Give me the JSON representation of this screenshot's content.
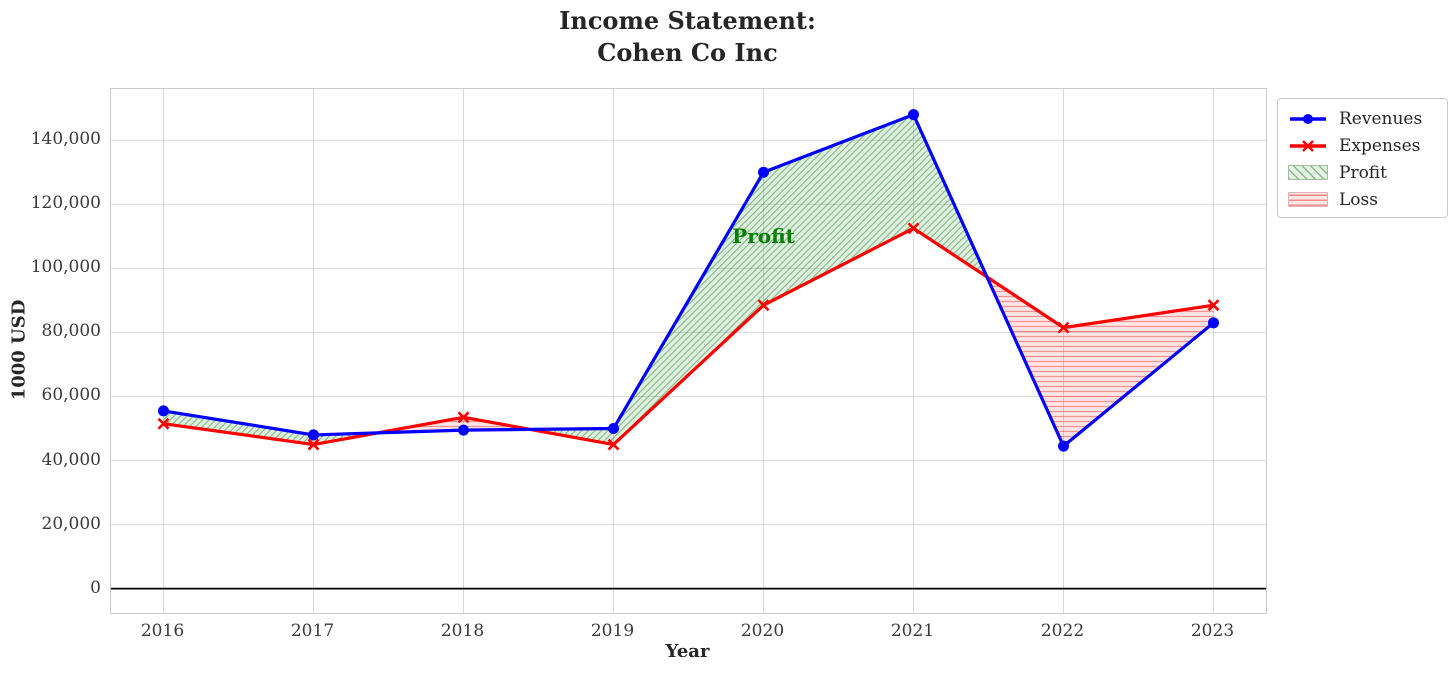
{
  "title": {
    "line1": "Income Statement:",
    "line2": "Cohen Co Inc"
  },
  "chart_data": {
    "type": "line",
    "x": [
      2016,
      2017,
      2018,
      2019,
      2020,
      2021,
      2022,
      2023
    ],
    "series": [
      {
        "name": "Revenues",
        "color": "#0000ff",
        "marker": "circle",
        "values": [
          55500,
          48000,
          49500,
          50000,
          130000,
          148000,
          44500,
          83000
        ]
      },
      {
        "name": "Expenses",
        "color": "#ff0000",
        "marker": "x",
        "values": [
          51500,
          45000,
          53500,
          45000,
          88500,
          112500,
          81500,
          88500
        ]
      }
    ],
    "fills": [
      {
        "name": "Profit",
        "base_color": "rgba(0,128,0,0.12)",
        "hatch": "diagonal",
        "hatch_color": "rgba(50,140,50,0.5)"
      },
      {
        "name": "Loss",
        "base_color": "rgba(255,0,0,0.10)",
        "hatch": "horizontal",
        "hatch_color": "rgba(235,90,90,0.6)"
      }
    ],
    "xlabel": "Year",
    "ylabel": "1000 USD",
    "xlim": [
      2015.65,
      2023.35
    ],
    "ylim": [
      -7600,
      156000
    ],
    "yticks": [
      0,
      20000,
      40000,
      60000,
      80000,
      100000,
      120000,
      140000
    ],
    "ytick_labels": [
      "0",
      "20,000",
      "40,000",
      "60,000",
      "80,000",
      "100,000",
      "120,000",
      "140,000"
    ],
    "xtick_labels": [
      "2016",
      "2017",
      "2018",
      "2019",
      "2020",
      "2021",
      "2022",
      "2023"
    ],
    "grid": true,
    "grid_color": "#d9d9d9",
    "zero_line_color": "#000000",
    "annotation": {
      "text": "Profit",
      "color": "#008000",
      "x": 2020,
      "y": 110000
    },
    "legend": {
      "position": "outside upper right",
      "entries": [
        {
          "label": "Revenues",
          "type": "line",
          "color": "#0000ff",
          "marker": "circle"
        },
        {
          "label": "Expenses",
          "type": "line",
          "color": "#ff0000",
          "marker": "x"
        },
        {
          "label": "Profit",
          "type": "patch",
          "hatch": "diagonal"
        },
        {
          "label": "Loss",
          "type": "patch",
          "hatch": "horizontal"
        }
      ]
    }
  }
}
